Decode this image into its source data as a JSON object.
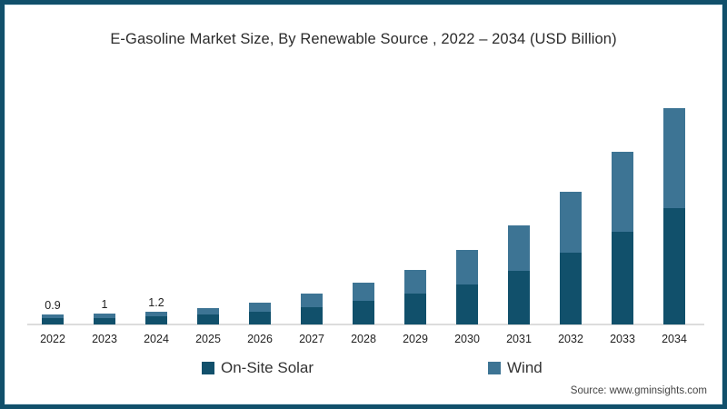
{
  "title": "E-Gasoline Market Size, By Renewable Source , 2022 – 2034 (USD Billion)",
  "source_note": "Source: www.gminsights.com",
  "colors": {
    "on_site_solar": "#11506b",
    "wind": "#3d7494",
    "frame_border": "#11506b",
    "frame_inner_line": "#d8e8ef",
    "axis_line": "#dcdcdc",
    "text": "#2b2b2b"
  },
  "legend": [
    {
      "label": "On-Site Solar",
      "color": "#11506b"
    },
    {
      "label": "Wind",
      "color": "#3d7494"
    }
  ],
  "chart_data": {
    "type": "bar",
    "stacked": true,
    "title": "E-Gasoline Market Size, By Renewable Source , 2022 – 2034 (USD Billion)",
    "xlabel": "",
    "ylabel": "USD Billion",
    "grid": false,
    "legend_position": "bottom",
    "categories": [
      "2022",
      "2023",
      "2024",
      "2025",
      "2026",
      "2027",
      "2028",
      "2029",
      "2030",
      "2031",
      "2032",
      "2033",
      "2034"
    ],
    "series": [
      {
        "name": "On-Site Solar",
        "color": "#11506b",
        "values": [
          0.55,
          0.6,
          0.72,
          0.9,
          1.2,
          1.6,
          2.2,
          2.85,
          3.7,
          4.9,
          6.6,
          8.5,
          10.7
        ]
      },
      {
        "name": "Wind",
        "color": "#3d7494",
        "values": [
          0.35,
          0.4,
          0.48,
          0.6,
          0.8,
          1.2,
          1.6,
          2.15,
          3.1,
          4.2,
          5.6,
          7.3,
          9.1
        ]
      }
    ],
    "totals_estimated": [
      0.9,
      1,
      1.2,
      1.5,
      2,
      2.8,
      3.8,
      5,
      6.8,
      9.1,
      12.2,
      15.8,
      19.8
    ],
    "bar_labels": [
      "0.9",
      "1",
      "1.2",
      "",
      "",
      "",
      "",
      "",
      "",
      "",
      "",
      "",
      ""
    ],
    "ylim": [
      0,
      21
    ]
  }
}
